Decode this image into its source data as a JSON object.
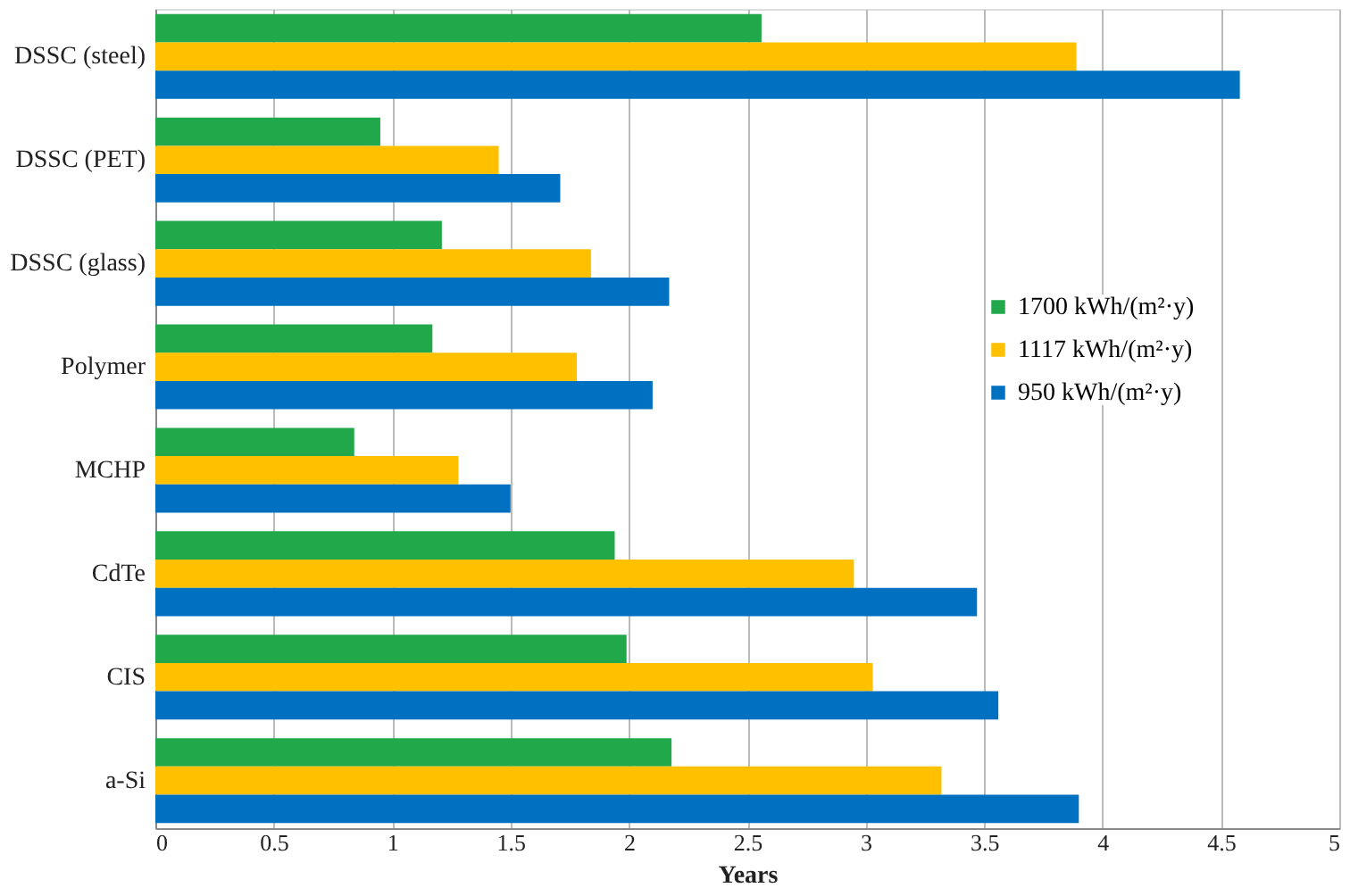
{
  "chart_data": {
    "type": "bar",
    "orientation": "horizontal",
    "xlabel": "Years",
    "categories": [
      "DSSC (steel)",
      "DSSC (PET)",
      "DSSC (glass)",
      "Polymer",
      "MCHP",
      "CdTe",
      "CIS",
      "a-Si"
    ],
    "series": [
      {
        "name": "1700 kWh/(m²·y)",
        "color": "#21a84a",
        "values": [
          2.56,
          0.95,
          1.21,
          1.17,
          0.84,
          1.94,
          1.99,
          2.18
        ]
      },
      {
        "name": "1117 kWh/(m²·y)",
        "color": "#ffc000",
        "values": [
          3.89,
          1.45,
          1.84,
          1.78,
          1.28,
          2.95,
          3.03,
          3.32
        ]
      },
      {
        "name": "950 kWh/(m²·y)",
        "color": "#0070c0",
        "values": [
          4.58,
          1.71,
          2.17,
          2.1,
          1.5,
          3.47,
          3.56,
          3.9
        ]
      }
    ],
    "xlim": [
      0,
      5
    ],
    "xticks": [
      0,
      0.5,
      1,
      1.5,
      2,
      2.5,
      3,
      3.5,
      4,
      4.5,
      5
    ],
    "grid": "x",
    "legend": "right"
  }
}
